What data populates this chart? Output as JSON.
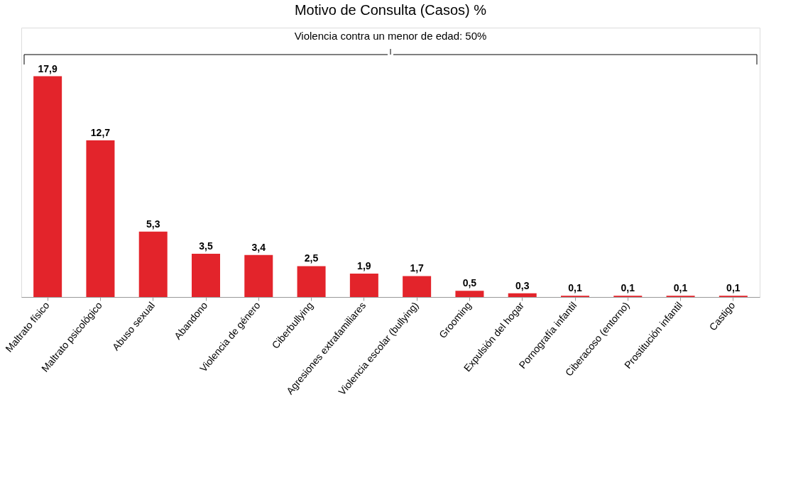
{
  "chart_data": {
    "type": "bar",
    "title": "Motivo de Consulta (Casos) %",
    "categories": [
      "Maltrato físico",
      "Maltrato psicológico",
      "Abuso sexual",
      "Abandono",
      "Violencia de género",
      "Ciberbullying",
      "Agresiones extrafamiliares",
      "Violencia escolar (bullying)",
      "Grooming",
      "Expulsión del hogar",
      "Pornografía infantil",
      "Ciberacoso (entorno)",
      "Prostitución infantil",
      "Castigo"
    ],
    "values": [
      17.9,
      12.7,
      5.3,
      3.5,
      3.4,
      2.5,
      1.9,
      1.7,
      0.5,
      0.3,
      0.1,
      0.1,
      0.1,
      0.1
    ],
    "value_labels": [
      "17,9",
      "12,7",
      "5,3",
      "3,5",
      "3,4",
      "2,5",
      "1,9",
      "1,7",
      "0,5",
      "0,3",
      "0,1",
      "0,1",
      "0,1",
      "0,1"
    ],
    "color": "#e3242b",
    "annotations": [
      "Violencia contra un menor de edad: 50%"
    ]
  }
}
